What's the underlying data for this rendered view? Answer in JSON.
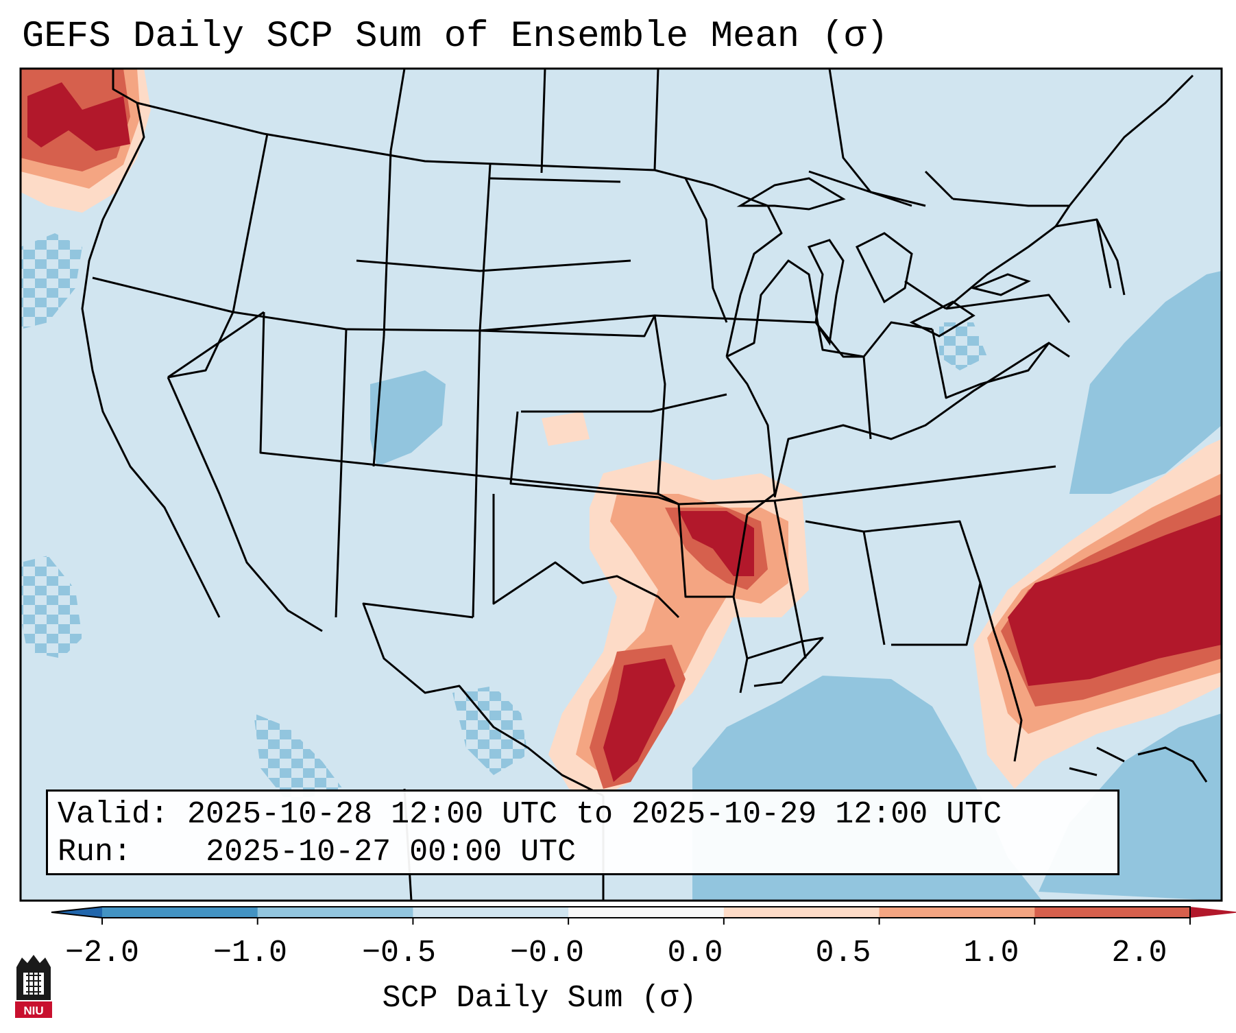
{
  "title": "GEFS Daily SCP Sum of Ensemble Mean (σ)",
  "info": {
    "valid_label": "Valid:",
    "valid_value": "2025-10-28 12:00 UTC to 2025-10-29 12:00 UTC",
    "run_label": "Run:",
    "run_value": "2025-10-27 00:00 UTC"
  },
  "colorbar": {
    "title": "SCP Daily Sum (σ)",
    "ticks": [
      "−2.0",
      "−1.0",
      "−0.5",
      "−0.0",
      "0.0",
      "0.5",
      "1.0",
      "2.0"
    ],
    "segment_colors": [
      "#4393c3",
      "#92c5de",
      "#d1e5f0",
      "#f7f7f7",
      "#fddbc7",
      "#f4a582",
      "#d6604d"
    ],
    "under_color": "#2166ac",
    "over_color": "#b2182b"
  },
  "map": {
    "background_color": "#d1e5f0",
    "anomaly_regions": [
      {
        "name": "Pacific Northwest coast",
        "level": "+2.0"
      },
      {
        "name": "Southern Plains to Lower Mississippi Valley",
        "level": "+2.0"
      },
      {
        "name": "Texas Gulf Coast",
        "level": "+2.0"
      },
      {
        "name": "Western Atlantic off Southeast coast",
        "level": "+2.0"
      },
      {
        "name": "Gulf of Mexico",
        "level": "-0.5"
      }
    ]
  },
  "logo": {
    "text": "NIU"
  }
}
